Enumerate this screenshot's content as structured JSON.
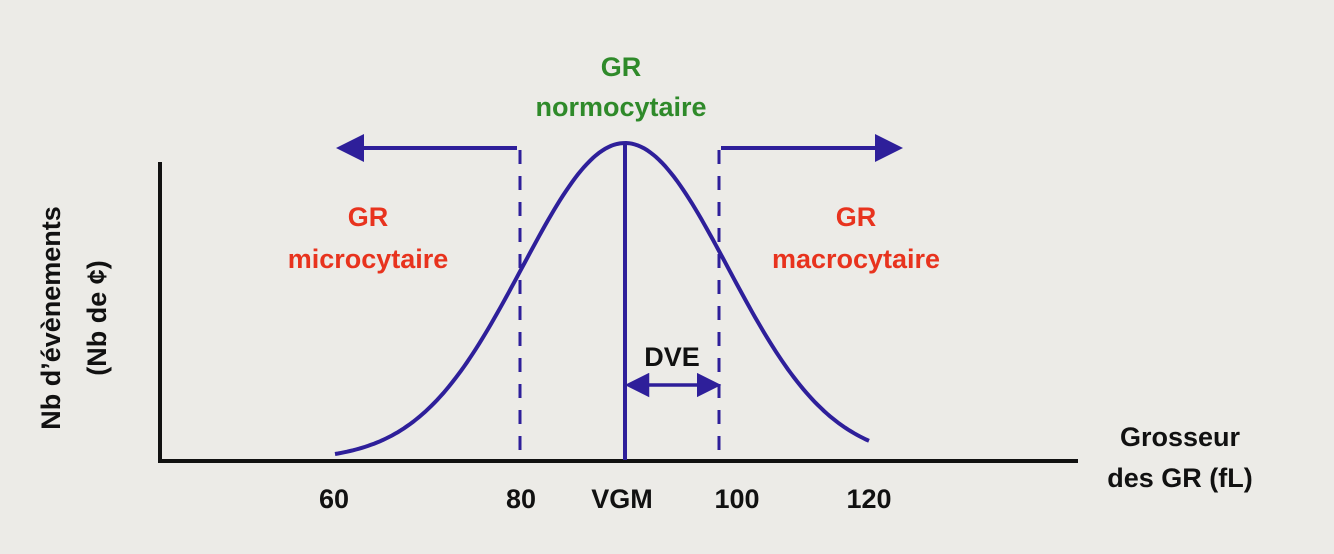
{
  "normal_label": {
    "line1": "GR",
    "line2": "normocytaire"
  },
  "micro_label": {
    "line1": "GR",
    "line2": "microcytaire"
  },
  "macro_label": {
    "line1": "GR",
    "line2": "macrocytaire"
  },
  "dve_label": "DVE",
  "y_axis_label": {
    "line1": "Nb d’évènements",
    "line2": "(Nb de ¢)"
  },
  "x_axis_label": {
    "line1": "Grosseur",
    "line2": "des GR (fL)"
  },
  "x_ticks": [
    "60",
    "80",
    "VGM",
    "100",
    "120"
  ],
  "colors": {
    "curve": "#2e1f9a",
    "normal_text": "#2f8a2a",
    "abnormal_text": "#e8331e",
    "axis": "#111111",
    "background": "#ecebe7"
  }
}
